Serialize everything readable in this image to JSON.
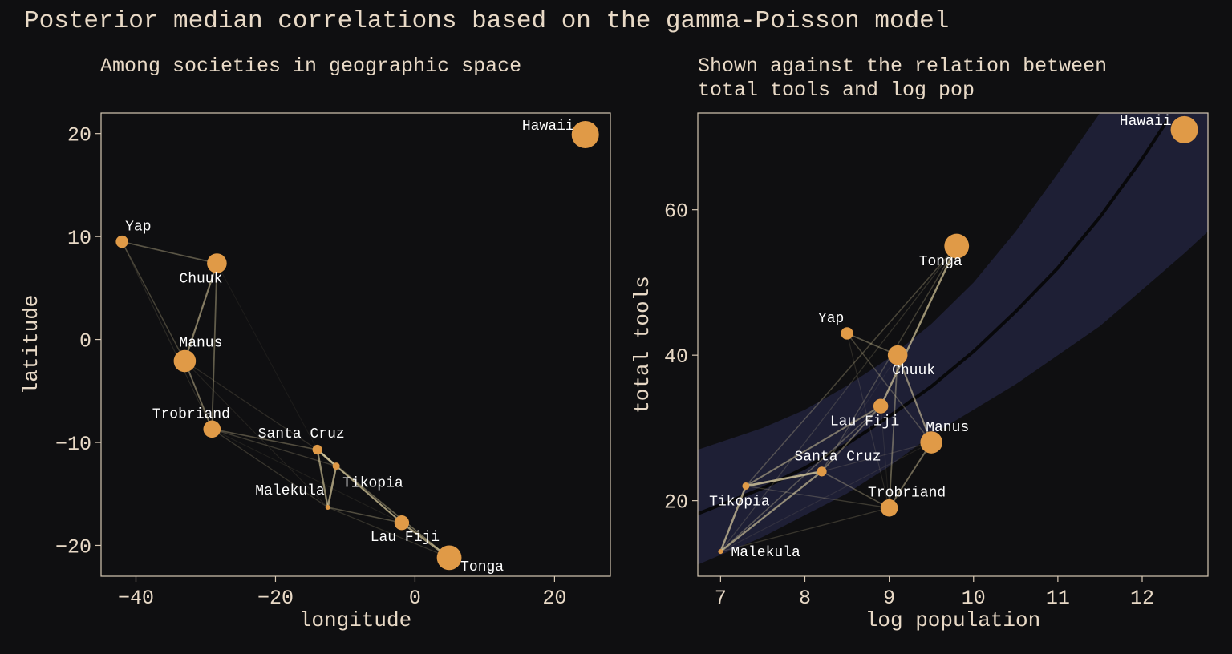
{
  "figure": {
    "title": "Posterior median correlations based on the gamma-Poisson model",
    "colors": {
      "background": "#0f0f11",
      "text": "#e8d9c6",
      "point": "#e09a47",
      "label": "#ffffff",
      "band": "#1e1f35",
      "trend": "#08080a",
      "link": "#e8d9a8",
      "frame": "#d6c7b3"
    }
  },
  "chart_data": [
    {
      "type": "scatter",
      "title": "Among societies in geographic space",
      "xlabel": "longitude",
      "ylabel": "latitude",
      "xlim": [
        -45,
        28
      ],
      "ylim": [
        -23,
        22
      ],
      "xticks": [
        -40,
        -20,
        0,
        20
      ],
      "yticks": [
        -20,
        -10,
        0,
        10,
        20
      ],
      "xtick_labels": [
        "−40",
        "−20",
        "0",
        "20"
      ],
      "ytick_labels": [
        "−20",
        "−10",
        "0",
        "10",
        "20"
      ],
      "points": [
        {
          "name": "Malekula",
          "x": -12.5,
          "y": -16.3,
          "size": 1
        },
        {
          "name": "Tikopia",
          "x": -11.3,
          "y": -12.3,
          "size": 2
        },
        {
          "name": "Santa Cruz",
          "x": -14.0,
          "y": -10.7,
          "size": 3
        },
        {
          "name": "Yap",
          "x": -42.0,
          "y": 9.5,
          "size": 4
        },
        {
          "name": "Lau Fiji",
          "x": -1.9,
          "y": -17.8,
          "size": 5
        },
        {
          "name": "Trobriand",
          "x": -29.1,
          "y": -8.7,
          "size": 6
        },
        {
          "name": "Chuuk",
          "x": -28.4,
          "y": 7.4,
          "size": 7
        },
        {
          "name": "Manus",
          "x": -33.0,
          "y": -2.1,
          "size": 8
        },
        {
          "name": "Tonga",
          "x": 4.9,
          "y": -21.2,
          "size": 9
        },
        {
          "name": "Hawaii",
          "x": 24.4,
          "y": 19.9,
          "size": 10
        }
      ]
    },
    {
      "type": "scatter",
      "title": "Shown against the relation between total tools and log pop",
      "xlabel": "log population",
      "ylabel": "total tools",
      "xlim": [
        6.73,
        12.78
      ],
      "ylim": [
        9.6,
        73.3
      ],
      "xticks": [
        7,
        8,
        9,
        10,
        11,
        12
      ],
      "yticks": [
        20,
        40,
        60
      ],
      "xtick_labels": [
        "7",
        "8",
        "9",
        "10",
        "11",
        "12"
      ],
      "ytick_labels": [
        "20",
        "40",
        "60"
      ],
      "points": [
        {
          "name": "Malekula",
          "x": 7.0,
          "y": 13,
          "size": 1
        },
        {
          "name": "Tikopia",
          "x": 7.3,
          "y": 22,
          "size": 2
        },
        {
          "name": "Santa Cruz",
          "x": 8.2,
          "y": 24,
          "size": 3
        },
        {
          "name": "Yap",
          "x": 8.5,
          "y": 43,
          "size": 4
        },
        {
          "name": "Lau Fiji",
          "x": 8.9,
          "y": 33,
          "size": 5
        },
        {
          "name": "Trobriand",
          "x": 9.0,
          "y": 19,
          "size": 6
        },
        {
          "name": "Chuuk",
          "x": 9.1,
          "y": 40,
          "size": 7
        },
        {
          "name": "Manus",
          "x": 9.5,
          "y": 28,
          "size": 8
        },
        {
          "name": "Tonga",
          "x": 9.8,
          "y": 55,
          "size": 9
        },
        {
          "name": "Hawaii",
          "x": 12.5,
          "y": 71,
          "size": 10
        }
      ],
      "trend": {
        "type": "line",
        "x": [
          6.73,
          7.5,
          8.0,
          8.5,
          9.0,
          9.5,
          10.0,
          10.5,
          11.0,
          11.5,
          12.0,
          12.3
        ],
        "y": [
          18.2,
          21.7,
          24.5,
          27.8,
          31.6,
          35.7,
          40.5,
          46.0,
          52.0,
          59.0,
          67.0,
          72.3
        ]
      },
      "band": {
        "type": "area",
        "x": [
          6.73,
          7.5,
          8.0,
          8.5,
          9.0,
          9.5,
          10.0,
          10.5,
          11.0,
          11.5,
          12.0,
          12.5,
          12.78
        ],
        "lower": [
          11.2,
          15.0,
          18.0,
          21.0,
          24.7,
          29.0,
          32.5,
          36.0,
          40.0,
          44.0,
          49.0,
          54.0,
          57.0
        ],
        "upper": [
          27.0,
          30.0,
          32.5,
          35.8,
          39.6,
          44.3,
          50.0,
          57.0,
          65.0,
          73.3,
          73.3,
          73.3,
          73.3
        ]
      }
    }
  ],
  "correlations": [
    {
      "a": "Malekula",
      "b": "Tikopia",
      "r": 0.78
    },
    {
      "a": "Malekula",
      "b": "Santa Cruz",
      "r": 0.69
    },
    {
      "a": "Tikopia",
      "b": "Santa Cruz",
      "r": 0.87
    },
    {
      "a": "Tikopia",
      "b": "Lau Fiji",
      "r": 0.57
    },
    {
      "a": "Santa Cruz",
      "b": "Lau Fiji",
      "r": 0.46
    },
    {
      "a": "Lau Fiji",
      "b": "Tonga",
      "r": 0.76
    },
    {
      "a": "Malekula",
      "b": "Lau Fiji",
      "r": 0.35
    },
    {
      "a": "Santa Cruz",
      "b": "Tonga",
      "r": 0.28
    },
    {
      "a": "Tikopia",
      "b": "Tonga",
      "r": 0.32
    },
    {
      "a": "Malekula",
      "b": "Tonga",
      "r": 0.2
    },
    {
      "a": "Yap",
      "b": "Chuuk",
      "r": 0.41
    },
    {
      "a": "Yap",
      "b": "Manus",
      "r": 0.31
    },
    {
      "a": "Chuuk",
      "b": "Manus",
      "r": 0.63
    },
    {
      "a": "Chuuk",
      "b": "Trobriand",
      "r": 0.45
    },
    {
      "a": "Manus",
      "b": "Trobriand",
      "r": 0.52
    },
    {
      "a": "Trobriand",
      "b": "Santa Cruz",
      "r": 0.36
    },
    {
      "a": "Trobriand",
      "b": "Tikopia",
      "r": 0.25
    },
    {
      "a": "Manus",
      "b": "Santa Cruz",
      "r": 0.18
    },
    {
      "a": "Trobriand",
      "b": "Malekula",
      "r": 0.22
    },
    {
      "a": "Manus",
      "b": "Malekula",
      "r": 0.12
    },
    {
      "a": "Yap",
      "b": "Trobriand",
      "r": 0.15
    },
    {
      "a": "Chuuk",
      "b": "Santa Cruz",
      "r": 0.08
    },
    {
      "a": "Trobriand",
      "b": "Lau Fiji",
      "r": 0.1
    }
  ]
}
